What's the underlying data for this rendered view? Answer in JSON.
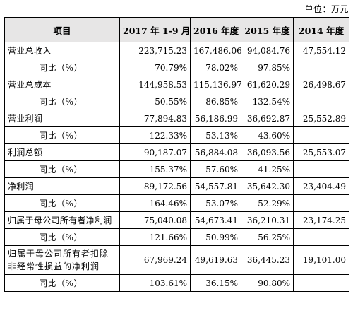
{
  "unit_label": "单位：万元",
  "headers": [
    "项目",
    "2017 年 1-9 月",
    "2016 年度",
    "2015 年度",
    "2014 年度"
  ],
  "rows": [
    {
      "label": "营业总收入",
      "v": [
        "223,715.23",
        "167,486.06",
        "94,084.76",
        "47,554.12"
      ]
    },
    {
      "label": "同比（%）",
      "v": [
        "70.79%",
        "78.02%",
        "97.85%",
        ""
      ]
    },
    {
      "label": "营业总成本",
      "v": [
        "144,958.53",
        "115,136.97",
        "61,620.29",
        "26,498.67"
      ]
    },
    {
      "label": "同比（%）",
      "v": [
        "50.55%",
        "86.85%",
        "132.54%",
        ""
      ]
    },
    {
      "label": "营业利润",
      "v": [
        "77,894.83",
        "56,186.99",
        "36,692.87",
        "25,552.89"
      ]
    },
    {
      "label": "同比（%）",
      "v": [
        "122.33%",
        "53.13%",
        "43.60%",
        ""
      ]
    },
    {
      "label": "利润总额",
      "v": [
        "90,187.07",
        "56,884.08",
        "36,093.56",
        "25,553.07"
      ]
    },
    {
      "label": "同比（%）",
      "v": [
        "155.37%",
        "57.60%",
        "41.25%",
        ""
      ]
    },
    {
      "label": "净利润",
      "v": [
        "89,172.56",
        "54,557.81",
        "35,642.30",
        "23,404.49"
      ]
    },
    {
      "label": "同比（%）",
      "v": [
        "164.46%",
        "53.07%",
        "52.29%",
        ""
      ]
    },
    {
      "label": "归属于母公司所有者净利润",
      "v": [
        "75,040.08",
        "54,673.41",
        "36,210.31",
        "23,174.25"
      ]
    },
    {
      "label": "同比（%）",
      "v": [
        "121.66%",
        "50.99%",
        "56.25%",
        ""
      ]
    },
    {
      "label": "归属于母公司所有者扣除非经常性损益的净利润",
      "v": [
        "67,969.24",
        "49,619.63",
        "36,445.23",
        "19,101.00"
      ]
    },
    {
      "label": "同比（%）",
      "v": [
        "103.61%",
        "36.15%",
        "90.80%",
        ""
      ]
    }
  ]
}
